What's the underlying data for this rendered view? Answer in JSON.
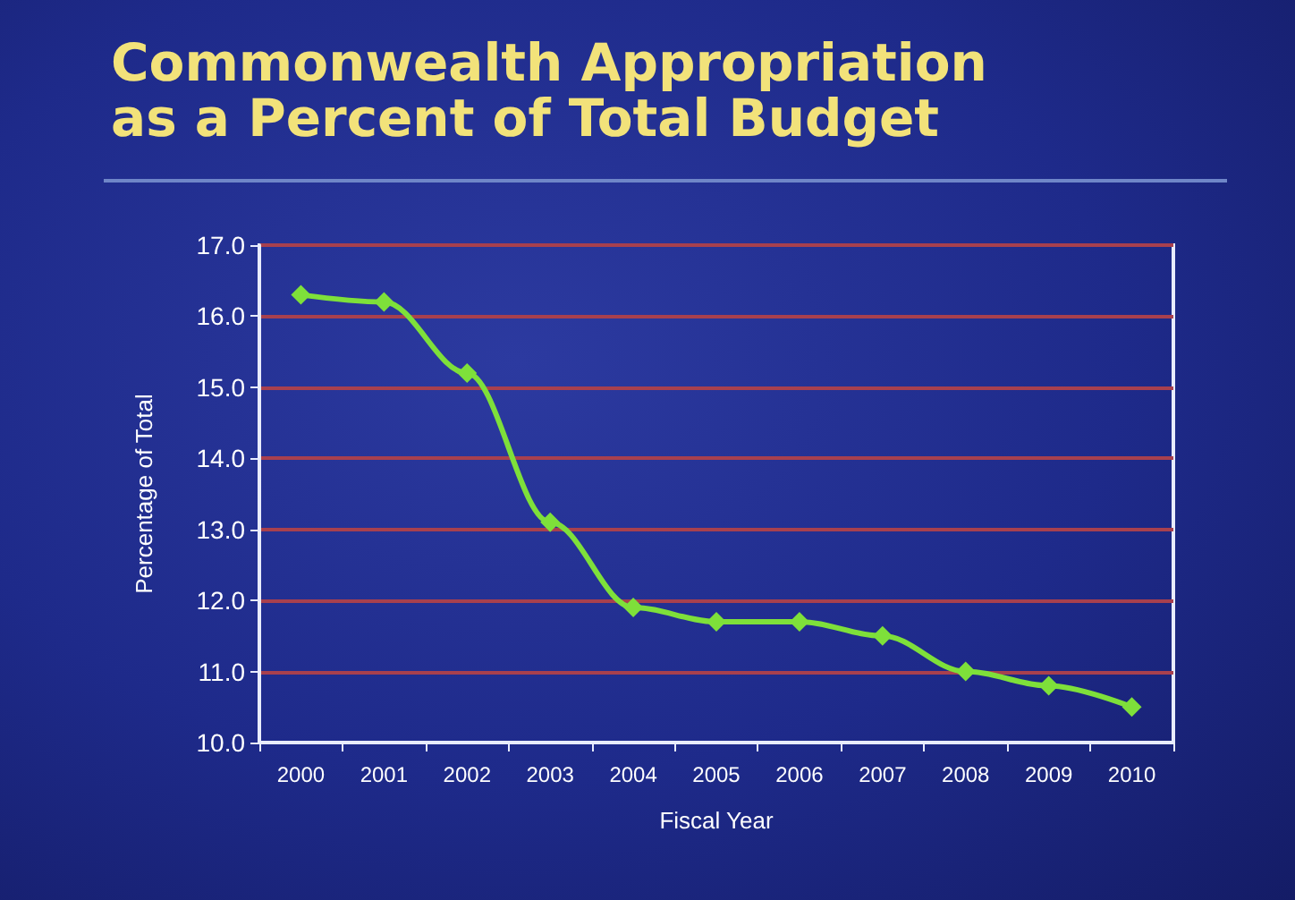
{
  "chart_data": {
    "type": "line",
    "title": "Commonwealth Appropriation\nas a Percent of Total Budget",
    "xlabel": "Fiscal Year",
    "ylabel": "Percentage of Total",
    "categories": [
      "2000",
      "2001",
      "2002",
      "2003",
      "2004",
      "2005",
      "2006",
      "2007",
      "2008",
      "2009",
      "2010"
    ],
    "series": [
      {
        "color": "#7ee03a",
        "values": [
          16.3,
          16.2,
          15.2,
          13.1,
          11.9,
          11.7,
          11.7,
          11.5,
          11.0,
          10.8,
          10.5
        ]
      }
    ],
    "ylim": [
      10,
      17
    ],
    "yticks": [
      {
        "value": 10,
        "label": "10.0"
      },
      {
        "value": 11,
        "label": "11.0"
      },
      {
        "value": 12,
        "label": "12.0"
      },
      {
        "value": 13,
        "label": "13.0"
      },
      {
        "value": 14,
        "label": "14.0"
      },
      {
        "value": 15,
        "label": "15.0"
      },
      {
        "value": 16,
        "label": "16.0"
      },
      {
        "value": 17,
        "label": "17.0"
      }
    ],
    "grid": "y",
    "marker": "diamond",
    "line_style": "solid"
  }
}
